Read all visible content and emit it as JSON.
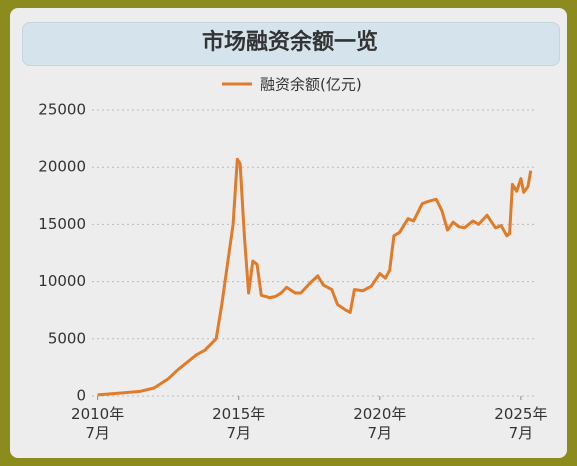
{
  "chart_data": {
    "type": "line",
    "title": "市场融资余额一览",
    "series": [
      {
        "name": "融资余额(亿元)",
        "color": "#e07b2a",
        "x": [
          2010.5,
          2011.0,
          2011.5,
          2012.0,
          2012.5,
          2013.0,
          2013.3,
          2013.7,
          2014.0,
          2014.3,
          2014.7,
          2014.9,
          2015.1,
          2015.3,
          2015.45,
          2015.55,
          2015.7,
          2015.85,
          2016.0,
          2016.15,
          2016.3,
          2016.6,
          2016.8,
          2017.0,
          2017.2,
          2017.5,
          2017.7,
          2018.0,
          2018.3,
          2018.5,
          2018.8,
          2019.0,
          2019.3,
          2019.45,
          2019.6,
          2019.9,
          2020.2,
          2020.5,
          2020.7,
          2020.85,
          2021.0,
          2021.2,
          2021.5,
          2021.7,
          2022.0,
          2022.2,
          2022.5,
          2022.7,
          2022.9,
          2023.1,
          2023.3,
          2023.5,
          2023.8,
          2024.0,
          2024.3,
          2024.6,
          2024.8,
          2025.0,
          2025.1,
          2025.2,
          2025.35,
          2025.5,
          2025.6,
          2025.75,
          2025.85
        ],
        "values": [
          100,
          200,
          300,
          400,
          700,
          1500,
          2200,
          3000,
          3600,
          4000,
          5000,
          8000,
          11500,
          15000,
          20700,
          20300,
          14000,
          9000,
          11800,
          11500,
          8800,
          8600,
          8700,
          9000,
          9500,
          9000,
          9000,
          9800,
          10500,
          9700,
          9300,
          8000,
          7500,
          7300,
          9300,
          9200,
          9600,
          10700,
          10300,
          11000,
          14000,
          14300,
          15500,
          15300,
          16800,
          17000,
          17200,
          16200,
          14500,
          15200,
          14800,
          14700,
          15300,
          15000,
          15800,
          14700,
          14900,
          14000,
          14200,
          18500,
          17900,
          19000,
          17800,
          18300,
          19700
        ]
      }
    ],
    "xlim": [
      2010.3,
      2026
    ],
    "ylim": [
      0,
      25000
    ],
    "xticks": [
      {
        "value": 2010.5,
        "label": "2010年\n7月"
      },
      {
        "value": 2015.5,
        "label": "2015年\n7月"
      },
      {
        "value": 2020.5,
        "label": "2020年\n7月"
      },
      {
        "value": 2025.5,
        "label": "2025年\n7月"
      }
    ],
    "yticks": [
      0,
      5000,
      10000,
      15000,
      20000,
      25000
    ],
    "grid": true
  }
}
